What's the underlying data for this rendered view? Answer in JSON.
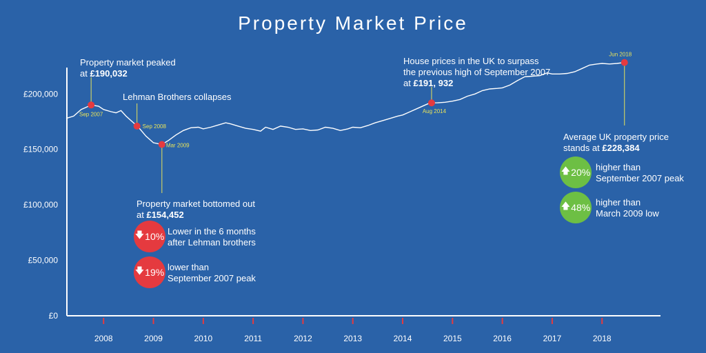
{
  "title": "Property Market Price",
  "colors": {
    "background": "#2a62a8",
    "line": "#ffffff",
    "point": "#e53a3f",
    "callout_line": "#e8e35a",
    "tick_red": "#e53a3f",
    "badge_down": "#e53a3f",
    "badge_up": "#6dbf44"
  },
  "annotations": {
    "peak": {
      "line1": "Property market peaked",
      "line2_prefix": "at ",
      "value": "£190,032"
    },
    "lehman": {
      "text": "Lehman Brothers collapses"
    },
    "bottom": {
      "line1": "Property market bottomed out",
      "line2_prefix": "at ",
      "value": "£154,452"
    },
    "surpass": {
      "line1": "House prices in the UK to surpass",
      "line2": "the previous high of September 2007",
      "line3_prefix": "at ",
      "value": "£191, 932"
    },
    "average": {
      "line1": "Average UK property price",
      "line2_prefix": "stands at ",
      "value": "£228,384"
    }
  },
  "badges": [
    {
      "arrow": "down-arrow-icon",
      "pct": "10%",
      "line1": "Lower in the 6 months",
      "line2": "after Lehman brothers"
    },
    {
      "arrow": "down-arrow-icon",
      "pct": "19%",
      "line1": "lower than",
      "line2": "September 2007 peak"
    },
    {
      "arrow": "up-arrow-icon",
      "pct": "20%",
      "line1": "higher than",
      "line2": "September 2007 peak"
    },
    {
      "arrow": "up-arrow-icon",
      "pct": "48%",
      "line1": "higher than",
      "line2": "March 2009 low"
    }
  ],
  "chart_data": {
    "type": "line",
    "title": "Property Market Price",
    "xlabel": "",
    "ylabel": "",
    "ylim": [
      0,
      230000
    ],
    "xlim": [
      2007.25,
      2019.0
    ],
    "yticks": [
      0,
      50000,
      100000,
      150000,
      200000
    ],
    "ytick_labels": [
      "£0",
      "£50,000",
      "£100,000",
      "£150,000",
      "£200,000"
    ],
    "xticks": [
      2008,
      2009,
      2010,
      2011,
      2012,
      2013,
      2014,
      2015,
      2016,
      2017,
      2018
    ],
    "xtick_labels": [
      "2008",
      "2009",
      "2010",
      "2011",
      "2012",
      "2013",
      "2014",
      "2015",
      "2016",
      "2017",
      "2018"
    ],
    "grid": false,
    "series": [
      {
        "x": [
          2007.25,
          2007.4,
          2007.55,
          2007.7,
          2007.75,
          2007.9,
          2008.0,
          2008.15,
          2008.25,
          2008.35,
          2008.45,
          2008.55,
          2008.7,
          2008.85,
          2009.0,
          2009.17,
          2009.3,
          2009.45,
          2009.6,
          2009.75,
          2009.9,
          2010.0,
          2010.15,
          2010.3,
          2010.45,
          2010.55,
          2010.7,
          2010.85,
          2011.0,
          2011.15,
          2011.25,
          2011.4,
          2011.55,
          2011.7,
          2011.85,
          2012.0,
          2012.15,
          2012.3,
          2012.45,
          2012.6,
          2012.75,
          2012.9,
          2013.0,
          2013.15,
          2013.3,
          2013.45,
          2013.6,
          2013.75,
          2013.9,
          2014.0,
          2014.15,
          2014.3,
          2014.45,
          2014.55,
          2014.7,
          2014.85,
          2015.0,
          2015.15,
          2015.3,
          2015.45,
          2015.6,
          2015.75,
          2015.9,
          2016.0,
          2016.15,
          2016.3,
          2016.45,
          2016.6,
          2016.75,
          2016.9,
          2017.0,
          2017.15,
          2017.3,
          2017.45,
          2017.6,
          2017.75,
          2017.9,
          2018.0,
          2018.15,
          2018.3,
          2018.45
        ],
        "y": [
          178000,
          180000,
          186000,
          189000,
          190032,
          189000,
          186000,
          184000,
          183000,
          185000,
          180000,
          176000,
          170000,
          162000,
          156000,
          154452,
          158000,
          163000,
          167000,
          169500,
          170000,
          168500,
          170000,
          172000,
          174000,
          173000,
          171000,
          169000,
          168000,
          166500,
          170000,
          168000,
          171000,
          170000,
          168000,
          168500,
          167000,
          167500,
          170000,
          169000,
          167000,
          168500,
          170000,
          169500,
          171500,
          174000,
          176000,
          178000,
          180000,
          181000,
          184000,
          187000,
          190000,
          191932,
          192000,
          192500,
          193500,
          195000,
          198000,
          200000,
          203000,
          204500,
          205000,
          205500,
          208000,
          212000,
          215500,
          216000,
          216500,
          219000,
          218000,
          218000,
          218500,
          220000,
          223000,
          226000,
          227000,
          227500,
          227000,
          227500,
          228384
        ]
      }
    ],
    "points": [
      {
        "x": 2007.75,
        "y": 190032,
        "label": "Sep 2007"
      },
      {
        "x": 2008.67,
        "y": 171000,
        "label": "Sep 2008"
      },
      {
        "x": 2009.17,
        "y": 154452,
        "label": "Mar 2009"
      },
      {
        "x": 2014.58,
        "y": 191932,
        "label": "Aug 2014"
      },
      {
        "x": 2018.45,
        "y": 228384,
        "label": "Jun 2018"
      }
    ]
  }
}
